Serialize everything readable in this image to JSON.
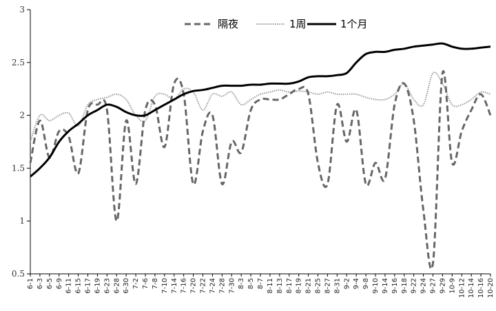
{
  "chart_data": {
    "type": "line",
    "title": "",
    "xlabel": "",
    "ylabel": "",
    "ylim": [
      0.5,
      3
    ],
    "yticks": [
      "0.5",
      "1",
      "1.5",
      "2",
      "2.5",
      "3"
    ],
    "grid": false,
    "legend_position": "top-center",
    "categories": [
      "6-1",
      "6-3",
      "6-5",
      "6-9",
      "6-11",
      "6-15",
      "6-17",
      "6-19",
      "6-23",
      "6-28",
      "6-30",
      "7-2",
      "7-6",
      "7-8",
      "7-10",
      "7-14",
      "7-16",
      "7-20",
      "7-22",
      "7-24",
      "7-28",
      "7-30",
      "8-3",
      "8-5",
      "8-7",
      "8-11",
      "8-13",
      "8-17",
      "8-19",
      "8-21",
      "8-25",
      "8-27",
      "8-31",
      "9-2",
      "9-4",
      "9-8",
      "9-10",
      "9-14",
      "9-16",
      "9-18",
      "9-22",
      "9-24",
      "9-27",
      "9-29",
      "10-9",
      "10-12",
      "10-14",
      "10-16",
      "10-20"
    ],
    "series": [
      {
        "name": "隔夜",
        "color": "#666666",
        "style": "dashed",
        "values": [
          1.55,
          1.95,
          1.6,
          1.85,
          1.8,
          1.45,
          2.05,
          2.1,
          2.05,
          1.0,
          1.95,
          1.35,
          2.05,
          2.1,
          1.7,
          2.3,
          2.2,
          1.35,
          1.85,
          2.0,
          1.35,
          1.75,
          1.65,
          2.05,
          2.15,
          2.15,
          2.15,
          2.2,
          2.25,
          2.2,
          1.55,
          1.35,
          2.1,
          1.75,
          2.05,
          1.35,
          1.55,
          1.4,
          2.1,
          2.3,
          1.95,
          1.1,
          0.6,
          2.4,
          1.55,
          1.85,
          2.05,
          2.2,
          2.0
        ]
      },
      {
        "name": "1周",
        "color": "#999999",
        "style": "dotted",
        "values": [
          1.75,
          2.0,
          1.95,
          2.0,
          2.02,
          1.9,
          2.1,
          2.15,
          2.17,
          2.2,
          2.15,
          2.0,
          1.95,
          2.18,
          2.2,
          2.15,
          2.25,
          2.22,
          2.05,
          2.2,
          2.18,
          2.22,
          2.1,
          2.15,
          2.2,
          2.22,
          2.24,
          2.22,
          2.23,
          2.22,
          2.2,
          2.22,
          2.2,
          2.2,
          2.2,
          2.17,
          2.15,
          2.15,
          2.2,
          2.3,
          2.15,
          2.1,
          2.4,
          2.3,
          2.1,
          2.1,
          2.15,
          2.22,
          2.2
        ]
      },
      {
        "name": "1个月",
        "color": "#000000",
        "style": "solid",
        "values": [
          1.42,
          1.5,
          1.6,
          1.75,
          1.85,
          1.92,
          2.0,
          2.05,
          2.1,
          2.08,
          2.03,
          2.0,
          2.0,
          2.05,
          2.1,
          2.15,
          2.2,
          2.23,
          2.24,
          2.26,
          2.28,
          2.28,
          2.28,
          2.29,
          2.29,
          2.3,
          2.3,
          2.3,
          2.32,
          2.36,
          2.37,
          2.37,
          2.38,
          2.4,
          2.5,
          2.58,
          2.6,
          2.6,
          2.62,
          2.63,
          2.65,
          2.66,
          2.67,
          2.68,
          2.65,
          2.63,
          2.63,
          2.64,
          2.65
        ]
      }
    ]
  }
}
